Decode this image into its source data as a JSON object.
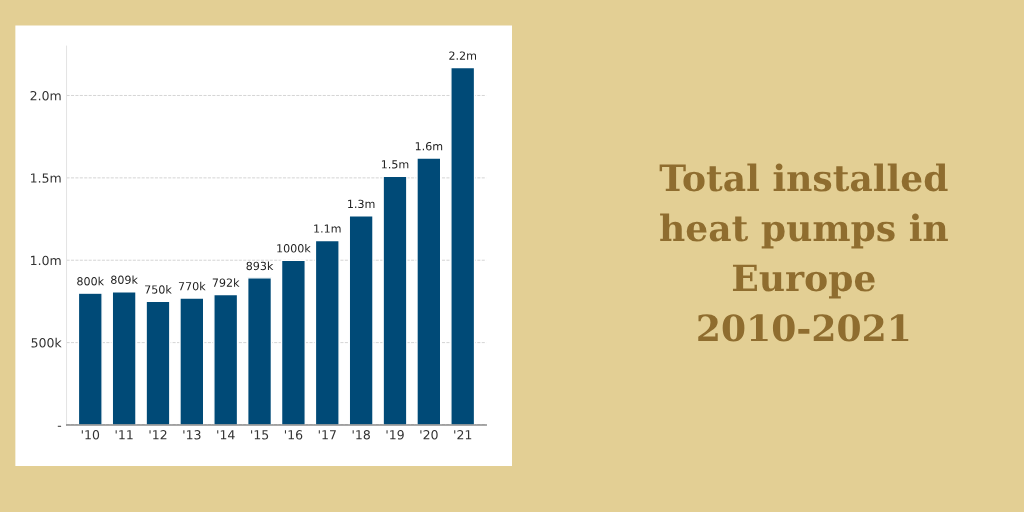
{
  "chart_data": {
    "type": "bar",
    "title": "Total installed\nheat pumps in\nEurope\n2010-2021",
    "categories": [
      "'10",
      "'11",
      "'12",
      "'13",
      "'14",
      "'15",
      "'16",
      "'17",
      "'18",
      "'19",
      "'20",
      "'21"
    ],
    "values": [
      800000,
      809000,
      750000,
      770000,
      792000,
      893000,
      1000000,
      1120000,
      1270000,
      1510000,
      1620000,
      2170000
    ],
    "value_labels": [
      "800k",
      "809k",
      "750k",
      "770k",
      "792k",
      "893k",
      "1000k",
      "1.1m",
      "1.3m",
      "1.5m",
      "1.6m",
      "2.2m"
    ],
    "color": "#004a77",
    "ylim": [
      0,
      2300000
    ],
    "yticks": [
      {
        "value": 0,
        "label": "-"
      },
      {
        "value": 500000,
        "label": "500k"
      },
      {
        "value": 1000000,
        "label": "1.0m"
      },
      {
        "value": 1500000,
        "label": "1.5m"
      },
      {
        "value": 2000000,
        "label": "2.0m"
      }
    ],
    "grid": "y"
  }
}
